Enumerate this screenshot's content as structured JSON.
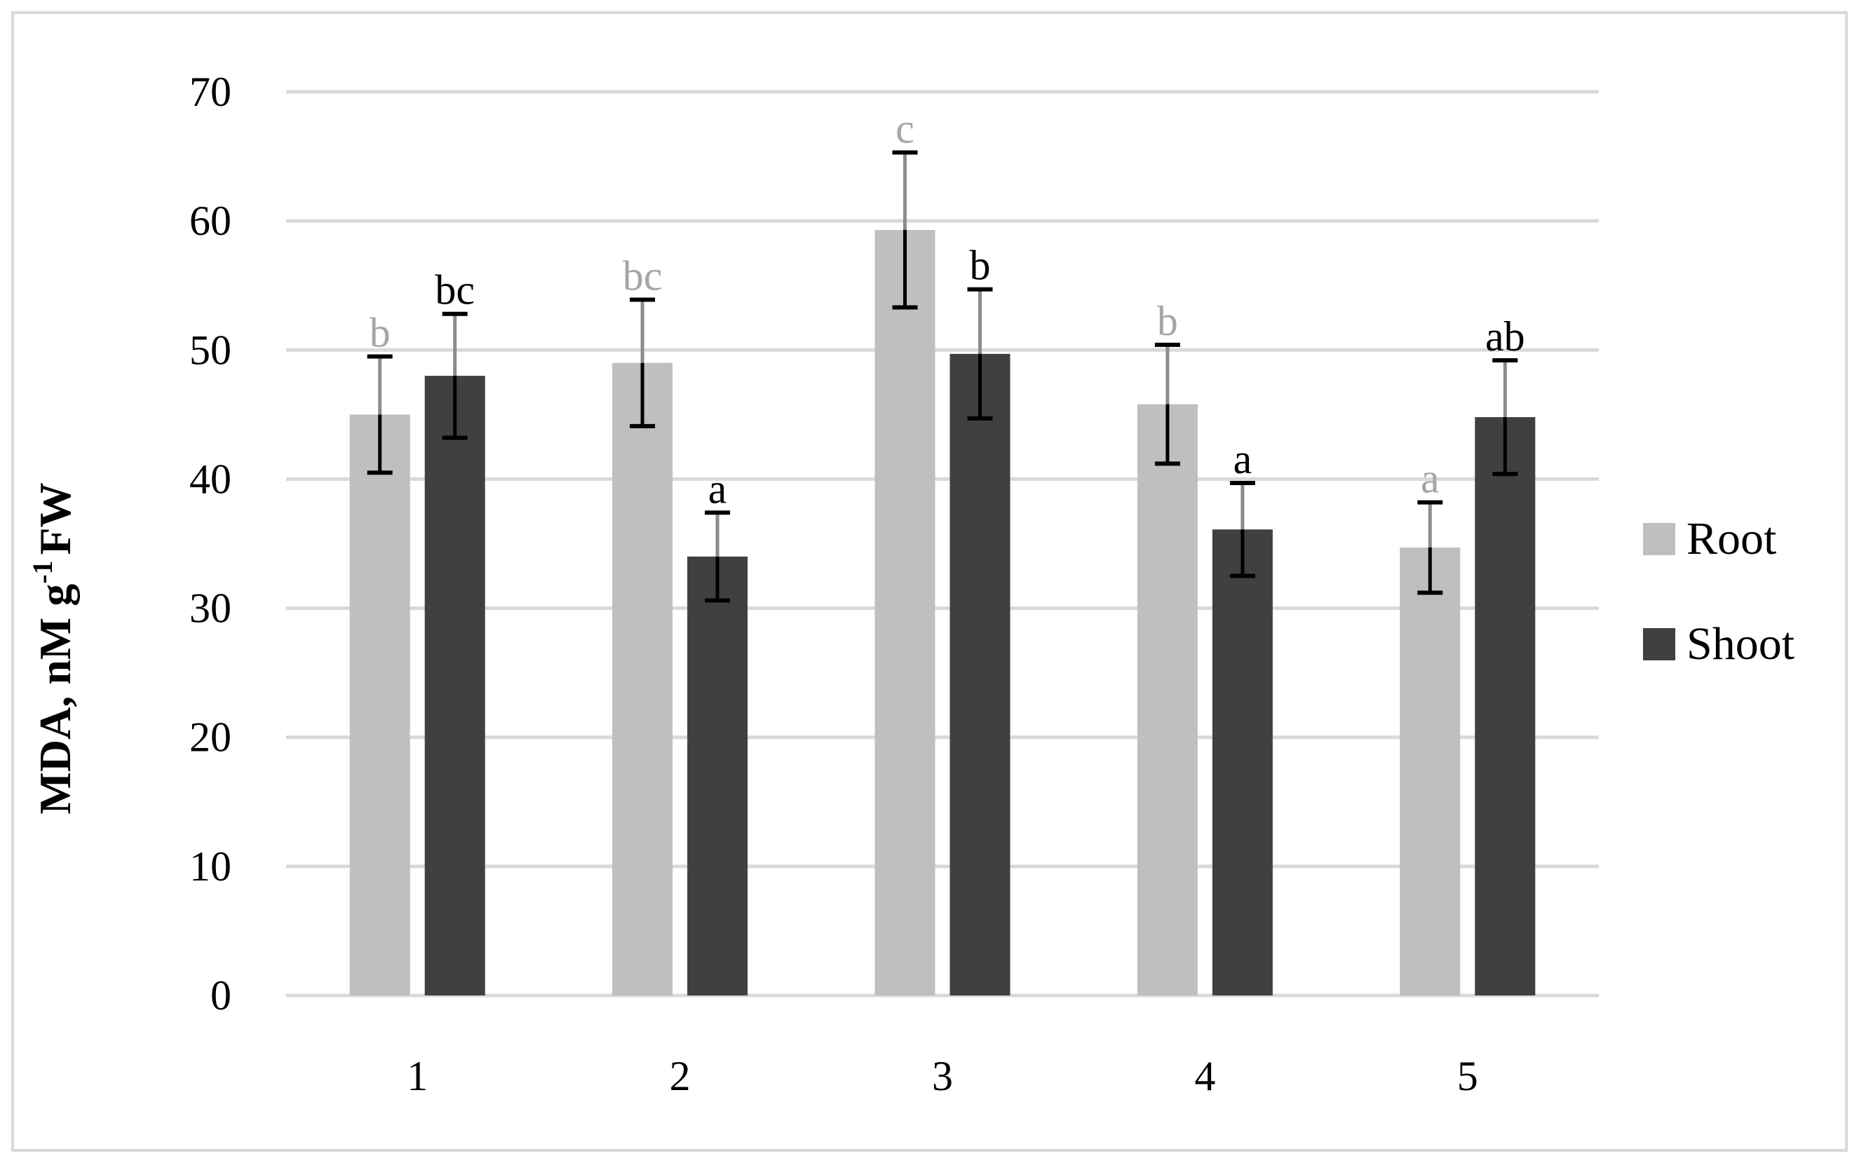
{
  "chart_data": {
    "type": "bar",
    "categories": [
      "1",
      "2",
      "3",
      "4",
      "5"
    ],
    "ylabel": "MDA, nM g",
    "ylabel_sup": "-1",
    "ylabel_tail": "FW",
    "ylim": [
      0,
      70
    ],
    "yticks": [
      0,
      10,
      20,
      30,
      40,
      50,
      60,
      70
    ],
    "grid": true,
    "legend_position": "right",
    "series": [
      {
        "name": "Root",
        "color": "#bfbfbf",
        "label_color": "#a6a6a6",
        "values": [
          45.0,
          49.0,
          59.3,
          45.8,
          34.7
        ],
        "errors": [
          4.5,
          4.9,
          6.0,
          4.6,
          3.5
        ],
        "labels": [
          "b",
          "bc",
          "c",
          "b",
          "a"
        ]
      },
      {
        "name": "Shoot",
        "color": "#404040",
        "label_color": "#000000",
        "values": [
          48.0,
          34.0,
          49.7,
          36.1,
          44.8
        ],
        "errors": [
          4.8,
          3.4,
          5.0,
          3.6,
          4.4
        ],
        "labels": [
          "bc",
          "a",
          "b",
          "a",
          "ab"
        ]
      }
    ]
  }
}
